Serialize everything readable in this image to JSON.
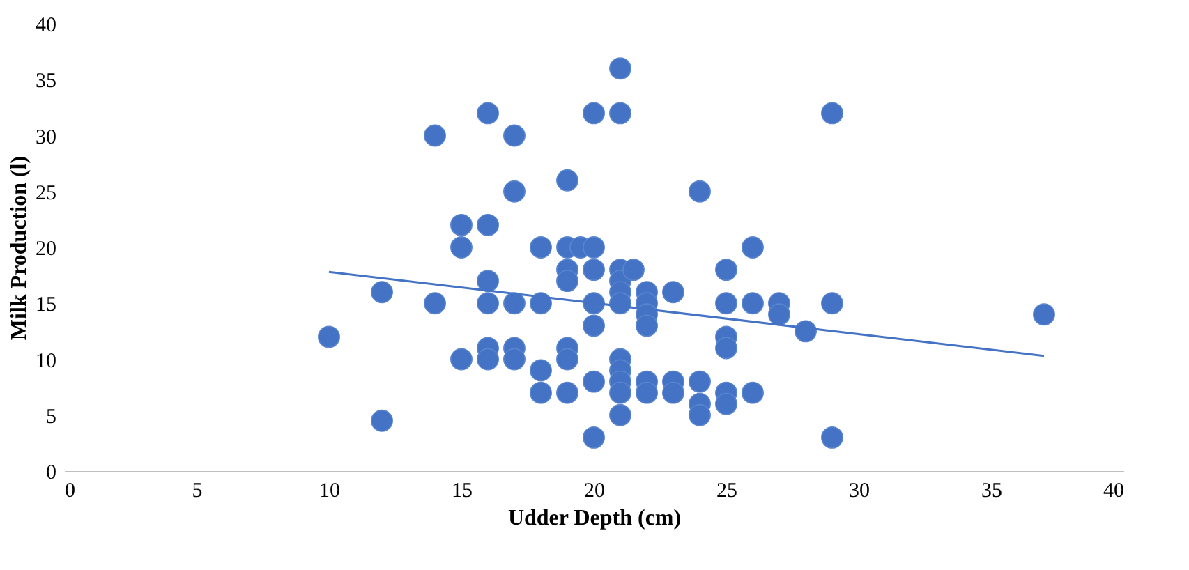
{
  "chart_data": {
    "type": "scatter",
    "xlabel": "Udder Depth (cm)",
    "ylabel": "Milk Production (l)",
    "xlim": [
      0,
      40
    ],
    "xticks": [
      0,
      5,
      10,
      15,
      20,
      25,
      30,
      35,
      40
    ],
    "ylim": [
      0,
      40
    ],
    "yticks": [
      0,
      5,
      10,
      15,
      20,
      25,
      30,
      35,
      40
    ],
    "grid": false,
    "series": [
      {
        "marker": "circle",
        "color": "#4472c4",
        "x": [
          10,
          12,
          12,
          14,
          14,
          15,
          15,
          15,
          16,
          16,
          16,
          16,
          16,
          16,
          17,
          17,
          17,
          17,
          17,
          18,
          18,
          18,
          18,
          19,
          19,
          19,
          19,
          19,
          19,
          19,
          19.5,
          20,
          20,
          20,
          20,
          20,
          20,
          20,
          21,
          21,
          21,
          21,
          21,
          21,
          21,
          21,
          21,
          21,
          21,
          21.5,
          22,
          22,
          22,
          22,
          22,
          22,
          23,
          23,
          23,
          24,
          24,
          24,
          24,
          25,
          25,
          25,
          25,
          25,
          25,
          26,
          26,
          26,
          27,
          27,
          28,
          29,
          29,
          29,
          37
        ],
        "values": [
          12,
          16,
          4.5,
          30,
          15,
          22,
          20,
          10,
          32,
          22,
          17,
          15,
          11,
          10,
          30,
          25,
          15,
          11,
          10,
          20,
          15,
          9,
          7,
          26,
          20,
          18,
          17,
          11,
          10,
          7,
          20,
          32,
          20,
          18,
          15,
          13,
          8,
          3,
          36,
          32,
          18,
          17,
          16,
          15,
          10,
          9,
          8,
          7,
          5,
          18,
          16,
          15,
          14,
          13,
          8,
          7,
          16,
          8,
          7,
          25,
          8,
          6,
          5,
          18,
          15,
          12,
          11,
          7,
          6,
          20,
          15,
          7,
          15,
          14,
          12.5,
          32,
          15,
          3,
          14
        ]
      },
      {
        "type": "line",
        "marker": "none",
        "color": "#4472c4",
        "x": [
          10,
          37
        ],
        "values": [
          17.8,
          10.3
        ]
      }
    ]
  }
}
